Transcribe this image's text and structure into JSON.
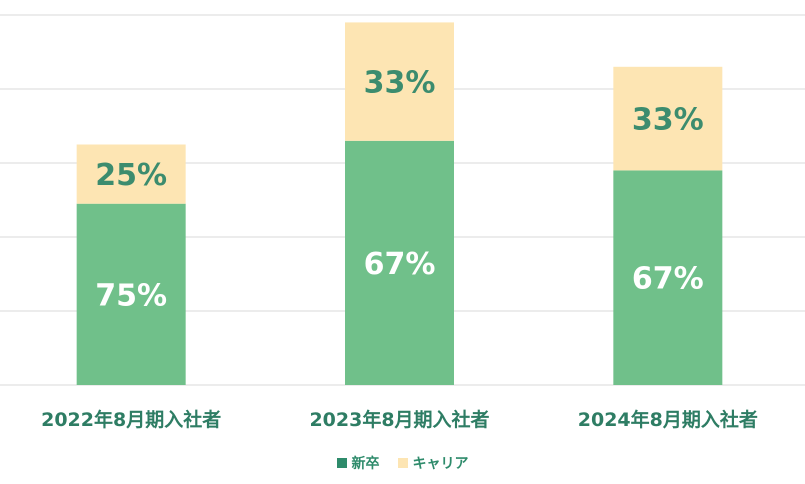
{
  "chart_data": {
    "type": "bar",
    "stacked": true,
    "categories": [
      "2022年8月期入社者",
      "2023年8月期入社者",
      "2024年8月期入社者"
    ],
    "series": [
      {
        "name": "新卒",
        "color": "#70c08a",
        "labels": [
          "75%",
          "67%",
          "67%"
        ],
        "values": [
          24.5,
          33,
          29
        ]
      },
      {
        "name": "キャリア",
        "color": "#fde5b3",
        "labels": [
          "25%",
          "33%",
          "33%"
        ],
        "values": [
          8,
          16,
          14
        ]
      }
    ],
    "ylim": [
      0,
      50
    ],
    "grid": true,
    "legend_position": "bottom",
    "colors": {
      "category_label": "#2e7d64",
      "inner_label_on_green": "#ffffff",
      "inner_label_on_yellow": "#3c8c6e",
      "grid": "#d9d9d9"
    }
  }
}
